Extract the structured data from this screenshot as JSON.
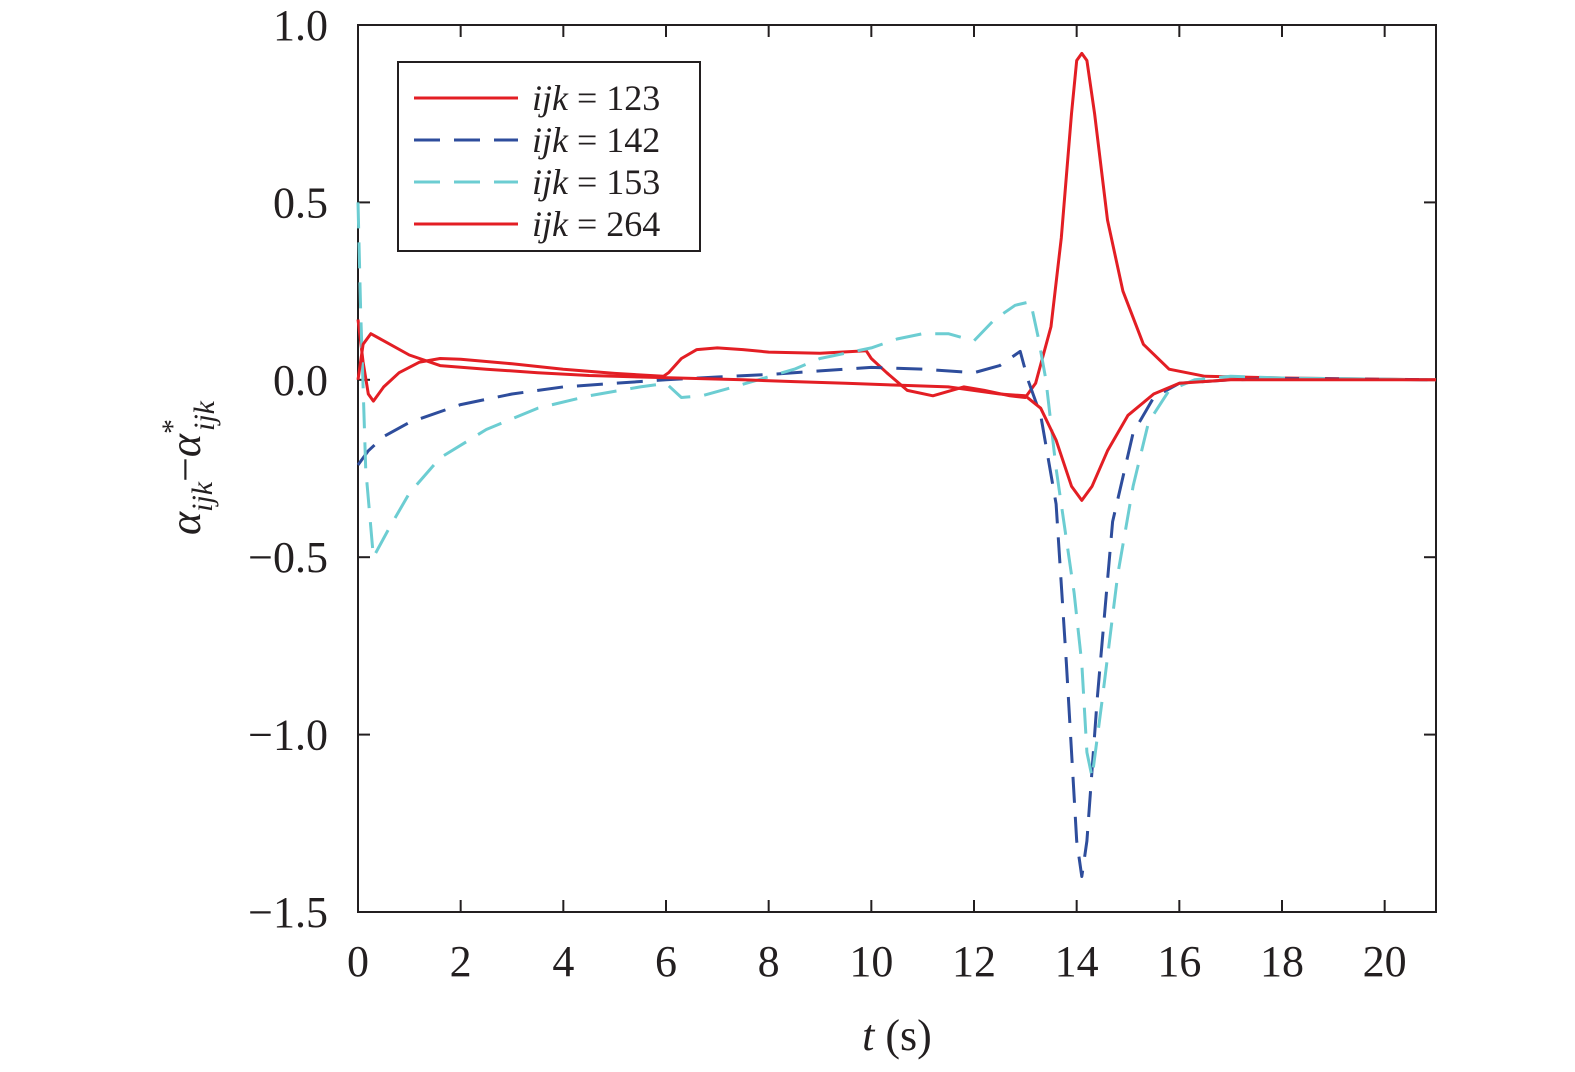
{
  "chart_data": {
    "type": "line",
    "xlabel": {
      "var": "t",
      "unit": " (s)"
    },
    "ylabel": {
      "base": "α",
      "sub": "ijk",
      "op": "−",
      "base2": "α",
      "sup2": "*",
      "sub2": "ijk"
    },
    "xlim": [
      0,
      21
    ],
    "ylim": [
      -1.5,
      1.0
    ],
    "xticks": [
      0,
      2,
      4,
      6,
      8,
      10,
      12,
      14,
      16,
      18,
      20
    ],
    "xtick_labels": [
      "0",
      "2",
      "4",
      "6",
      "8",
      "10",
      "12",
      "14",
      "16",
      "18",
      "20"
    ],
    "yticks": [
      1.0,
      0.5,
      0.0,
      -0.5,
      -1.0,
      -1.5
    ],
    "ytick_labels": [
      "1.0",
      "0.5",
      "0.0",
      "−0.5",
      "−1.0",
      "−1.5"
    ],
    "grid": false,
    "legend_position": "top-left",
    "series": [
      {
        "name": "ijk = 123",
        "name_var": "ijk",
        "name_value": " = 123",
        "color": "#e31e24",
        "dash": "solid",
        "points": [
          [
            0,
            0.17
          ],
          [
            0.1,
            0.05
          ],
          [
            0.2,
            -0.04
          ],
          [
            0.3,
            -0.06
          ],
          [
            0.5,
            -0.02
          ],
          [
            0.8,
            0.02
          ],
          [
            1.2,
            0.05
          ],
          [
            1.6,
            0.06
          ],
          [
            2,
            0.058
          ],
          [
            3,
            0.045
          ],
          [
            4,
            0.03
          ],
          [
            5,
            0.018
          ],
          [
            5.95,
            0.01
          ],
          [
            6.05,
            0.02
          ],
          [
            6.3,
            0.06
          ],
          [
            6.6,
            0.085
          ],
          [
            7,
            0.09
          ],
          [
            7.5,
            0.085
          ],
          [
            8,
            0.078
          ],
          [
            9,
            0.075
          ],
          [
            9.9,
            0.082
          ],
          [
            10,
            0.06
          ],
          [
            10.3,
            0.02
          ],
          [
            10.7,
            -0.03
          ],
          [
            11.2,
            -0.045
          ],
          [
            11.8,
            -0.02
          ],
          [
            12.2,
            -0.03
          ],
          [
            12.7,
            -0.045
          ],
          [
            13,
            -0.05
          ],
          [
            13.2,
            -0.01
          ],
          [
            13.5,
            0.15
          ],
          [
            13.7,
            0.4
          ],
          [
            13.9,
            0.75
          ],
          [
            14,
            0.9
          ],
          [
            14.1,
            0.92
          ],
          [
            14.2,
            0.9
          ],
          [
            14.35,
            0.75
          ],
          [
            14.6,
            0.45
          ],
          [
            14.9,
            0.25
          ],
          [
            15.3,
            0.1
          ],
          [
            15.8,
            0.03
          ],
          [
            16.5,
            0.01
          ],
          [
            18,
            0.005
          ],
          [
            21,
            0.0
          ]
        ]
      },
      {
        "name": "ijk = 142",
        "name_var": "ijk",
        "name_value": " = 142",
        "color": "#2e4d9c",
        "dash": "long",
        "points": [
          [
            0,
            -0.24
          ],
          [
            0.2,
            -0.2
          ],
          [
            0.5,
            -0.16
          ],
          [
            1,
            -0.12
          ],
          [
            2,
            -0.07
          ],
          [
            3,
            -0.04
          ],
          [
            4,
            -0.02
          ],
          [
            5,
            -0.01
          ],
          [
            6,
            0.0
          ],
          [
            7,
            0.008
          ],
          [
            8,
            0.015
          ],
          [
            9,
            0.025
          ],
          [
            10,
            0.035
          ],
          [
            11,
            0.03
          ],
          [
            12,
            0.02
          ],
          [
            12.5,
            0.04
          ],
          [
            12.9,
            0.08
          ],
          [
            13.05,
            0.0
          ],
          [
            13.3,
            -0.1
          ],
          [
            13.6,
            -0.35
          ],
          [
            13.8,
            -0.8
          ],
          [
            14,
            -1.3
          ],
          [
            14.1,
            -1.4
          ],
          [
            14.2,
            -1.3
          ],
          [
            14.4,
            -0.9
          ],
          [
            14.7,
            -0.4
          ],
          [
            15.1,
            -0.15
          ],
          [
            15.5,
            -0.05
          ],
          [
            16,
            -0.01
          ],
          [
            17,
            0.0
          ],
          [
            18,
            0.003
          ],
          [
            21,
            0.0
          ]
        ]
      },
      {
        "name": "ijk = 153",
        "name_var": "ijk",
        "name_value": " = 153",
        "color": "#6ccdd2",
        "dash": "long",
        "points": [
          [
            0,
            0.5
          ],
          [
            0.05,
            0.2
          ],
          [
            0.15,
            -0.25
          ],
          [
            0.3,
            -0.5
          ],
          [
            0.6,
            -0.42
          ],
          [
            1,
            -0.32
          ],
          [
            1.6,
            -0.22
          ],
          [
            2.5,
            -0.14
          ],
          [
            3.5,
            -0.08
          ],
          [
            4.5,
            -0.045
          ],
          [
            5.5,
            -0.02
          ],
          [
            6,
            -0.01
          ],
          [
            6.3,
            -0.05
          ],
          [
            6.7,
            -0.045
          ],
          [
            7.2,
            -0.025
          ],
          [
            7.8,
            0.0
          ],
          [
            8.5,
            0.03
          ],
          [
            9,
            0.06
          ],
          [
            9.5,
            0.075
          ],
          [
            10,
            0.09
          ],
          [
            10.5,
            0.115
          ],
          [
            11,
            0.13
          ],
          [
            11.5,
            0.13
          ],
          [
            12,
            0.11
          ],
          [
            12.4,
            0.17
          ],
          [
            12.8,
            0.21
          ],
          [
            13.1,
            0.22
          ],
          [
            13.25,
            0.12
          ],
          [
            13.4,
            0.0
          ],
          [
            13.6,
            -0.25
          ],
          [
            13.8,
            -0.45
          ],
          [
            13.95,
            -0.6
          ],
          [
            14.1,
            -0.8
          ],
          [
            14.2,
            -1.05
          ],
          [
            14.3,
            -1.12
          ],
          [
            14.5,
            -0.9
          ],
          [
            14.8,
            -0.55
          ],
          [
            15.1,
            -0.3
          ],
          [
            15.4,
            -0.12
          ],
          [
            15.8,
            -0.03
          ],
          [
            16.3,
            0.0
          ],
          [
            17,
            0.01
          ],
          [
            18,
            0.005
          ],
          [
            21,
            0.0
          ]
        ]
      },
      {
        "name": "ijk = 264",
        "name_var": "ijk",
        "name_value": " = 264",
        "color": "#e31e24",
        "dash": "solid",
        "points": [
          [
            0,
            0.0
          ],
          [
            0.1,
            0.1
          ],
          [
            0.25,
            0.13
          ],
          [
            0.5,
            0.11
          ],
          [
            1,
            0.07
          ],
          [
            1.6,
            0.04
          ],
          [
            2.5,
            0.03
          ],
          [
            3.5,
            0.02
          ],
          [
            4.5,
            0.012
          ],
          [
            5.5,
            0.008
          ],
          [
            6.5,
            0.004
          ],
          [
            7.5,
            0.0
          ],
          [
            8.5,
            -0.005
          ],
          [
            9.5,
            -0.01
          ],
          [
            10.5,
            -0.015
          ],
          [
            11.5,
            -0.02
          ],
          [
            12.5,
            -0.04
          ],
          [
            13,
            -0.045
          ],
          [
            13.3,
            -0.08
          ],
          [
            13.6,
            -0.17
          ],
          [
            13.9,
            -0.3
          ],
          [
            14.1,
            -0.34
          ],
          [
            14.3,
            -0.3
          ],
          [
            14.6,
            -0.2
          ],
          [
            15,
            -0.1
          ],
          [
            15.5,
            -0.04
          ],
          [
            16,
            -0.01
          ],
          [
            17,
            0.0
          ],
          [
            21,
            0.0
          ]
        ]
      }
    ]
  }
}
